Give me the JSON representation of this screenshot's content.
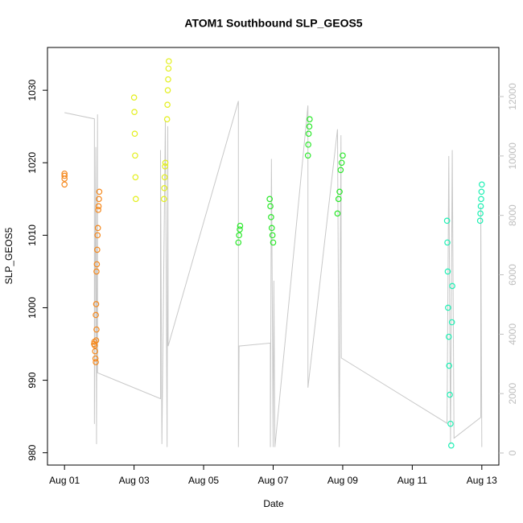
{
  "chart_data": {
    "type": "scatter",
    "title": "ATOM1 Southbound SLP_GEOS5",
    "x_label": "Date",
    "y_label": "SLP_GEOS5",
    "xlim": [
      -0.49,
      12.49
    ],
    "ylim": [
      978.3,
      1035.9
    ],
    "y2lim": [
      -406,
      13653
    ],
    "xticks": [
      {
        "value": 0,
        "label": "Aug 01"
      },
      {
        "value": 2,
        "label": "Aug 03"
      },
      {
        "value": 4,
        "label": "Aug 05"
      },
      {
        "value": 6,
        "label": "Aug 07"
      },
      {
        "value": 8,
        "label": "Aug 09"
      },
      {
        "value": 10,
        "label": "Aug 11"
      },
      {
        "value": 12,
        "label": "Aug 13"
      }
    ],
    "yticks": [
      980,
      990,
      1000,
      1010,
      1020,
      1030
    ],
    "y2ticks": [
      0,
      2000,
      4000,
      6000,
      8000,
      10000,
      12000
    ],
    "y2color": "#bebebe",
    "series": [
      {
        "type": "line",
        "axis": "y2",
        "color": "#c8c8c8",
        "x": [
          0,
          0.86,
          0.86,
          0.9,
          0.92,
          0.95,
          0.95,
          2.76,
          2.76,
          2.8,
          2.9,
          2.95,
          2.97,
          2.98,
          5.0,
          5.0,
          5.02,
          5.92,
          5.92,
          5.95,
          6.0,
          6.02,
          6.05,
          7.0,
          7.0,
          7.85,
          7.9,
          7.95,
          7.96,
          11.0,
          11.05,
          11.1,
          11.15,
          11.2,
          11.97,
          11.97,
          12.0
        ],
        "values": [
          11460,
          11250,
          980,
          10300,
          300,
          11400,
          2700,
          1830,
          10200,
          300,
          11200,
          200,
          11000,
          3600,
          11850,
          200,
          3600,
          3700,
          200,
          9900,
          200,
          5800,
          200,
          11700,
          2200,
          10900,
          200,
          10700,
          3200,
          1000,
          10000,
          300,
          10200,
          500,
          1200,
          8300,
          200
        ]
      },
      {
        "type": "scatter",
        "color": "#f5891e",
        "x": [
          0,
          0,
          0,
          0,
          0.85,
          0.86,
          0.87,
          0.88,
          0.89,
          0.9,
          0.91,
          0.92,
          0.9,
          0.91,
          0.92,
          0.93,
          0.94,
          0.95,
          0.96,
          0.97,
          0.98,
          0.99,
          1.0
        ],
        "values": [
          1017,
          1017.8,
          1018.2,
          1018.5,
          995,
          995.3,
          994.8,
          994,
          993,
          992.5,
          995.5,
          997,
          999,
          1000.5,
          1005,
          1006,
          1008,
          1010,
          1011,
          1013.5,
          1014,
          1015,
          1016
        ]
      },
      {
        "type": "scatter",
        "color": "#e3ef1c",
        "x": [
          2.0,
          2.01,
          2.02,
          2.03,
          2.04,
          2.05,
          2.86,
          2.87,
          2.88,
          2.89,
          2.9,
          2.95,
          2.96,
          2.97,
          2.98,
          2.99,
          3.0
        ],
        "values": [
          1029,
          1027,
          1024,
          1021,
          1018,
          1015,
          1015,
          1016.5,
          1018,
          1019.5,
          1020,
          1026,
          1028,
          1030,
          1031.5,
          1033,
          1034
        ]
      },
      {
        "type": "scatter",
        "color": "#2ae82a",
        "x": [
          5.0,
          5.02,
          5.04,
          5.05,
          5.9,
          5.92,
          5.94,
          5.96,
          5.98,
          6.0,
          7.0,
          7.01,
          7.02,
          7.04,
          7.05,
          7.85,
          7.88,
          7.91,
          7.94,
          7.97,
          8.0
        ],
        "values": [
          1009,
          1010,
          1010.8,
          1011.3,
          1015,
          1014,
          1012.5,
          1011,
          1010,
          1009,
          1021,
          1022.5,
          1024,
          1025,
          1026,
          1013,
          1015,
          1016,
          1019,
          1020,
          1021
        ]
      },
      {
        "type": "scatter",
        "color": "#1ff0b4",
        "x": [
          11.0,
          11.01,
          11.02,
          11.03,
          11.05,
          11.06,
          11.08,
          11.1,
          11.12,
          11.14,
          11.15,
          11.95,
          11.96,
          11.97,
          11.98,
          11.99,
          12.0
        ],
        "values": [
          1012,
          1009,
          1005,
          1000,
          996,
          992,
          988,
          984,
          981,
          998,
          1003,
          1012,
          1013,
          1014,
          1015,
          1016,
          1017
        ]
      }
    ]
  }
}
